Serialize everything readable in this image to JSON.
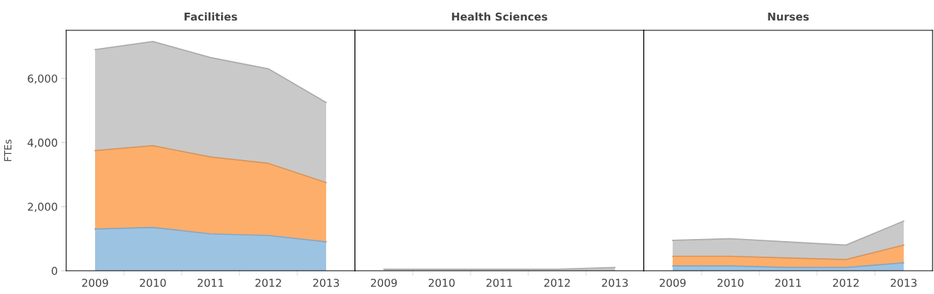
{
  "chart_data": [
    {
      "type": "area",
      "title": "Facilities",
      "ylabel": "FTEs",
      "stacked": true,
      "categories": [
        "2009",
        "2010",
        "2011",
        "2012",
        "2013"
      ],
      "ylim": [
        0,
        7500
      ],
      "yticks": [
        0,
        {
          "value": 2000,
          "label": "2,000"
        },
        {
          "value": 4000,
          "label": "4,000"
        },
        {
          "value": 6000,
          "label": "6,000"
        }
      ],
      "grid": false,
      "legend": false,
      "series": [
        {
          "color": "#9dc3e3",
          "values": [
            1300,
            1350,
            1150,
            1100,
            900
          ]
        },
        {
          "color": "#fdae6b",
          "values": [
            2450,
            2550,
            2400,
            2250,
            1850
          ]
        },
        {
          "color": "#c9c9c9",
          "values": [
            3150,
            3250,
            3100,
            2950,
            2500
          ]
        }
      ]
    },
    {
      "type": "area",
      "title": "Health Sciences",
      "stacked": true,
      "categories": [
        "2009",
        "2010",
        "2011",
        "2012",
        "2013"
      ],
      "ylim": [
        0,
        7500
      ],
      "tick_labels": "x",
      "grid": false,
      "legend": false,
      "series": [
        {
          "color": "#c9c9c9",
          "values": [
            50,
            50,
            50,
            50,
            100
          ]
        }
      ]
    },
    {
      "type": "area",
      "title": "Nurses",
      "stacked": true,
      "categories": [
        "2009",
        "2010",
        "2011",
        "2012",
        "2013"
      ],
      "ylim": [
        0,
        7500
      ],
      "tick_labels": "x",
      "grid": false,
      "legend": false,
      "series": [
        {
          "color": "#9dc3e3",
          "values": [
            150,
            150,
            100,
            100,
            250
          ]
        },
        {
          "color": "#fdae6b",
          "values": [
            300,
            300,
            300,
            250,
            550
          ]
        },
        {
          "color": "#c9c9c9",
          "values": [
            500,
            550,
            500,
            450,
            750
          ]
        }
      ]
    }
  ]
}
